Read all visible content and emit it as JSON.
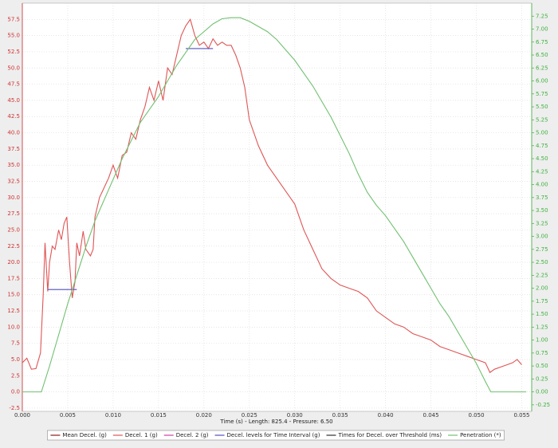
{
  "chart_data": {
    "type": "line",
    "xlabel": "Time (s) - Length: 825.4 - Pressure: 6.50",
    "xlim": [
      0,
      0.0561
    ],
    "ylim": [
      -3,
      60
    ],
    "y2lim": [
      -0.375,
      7.5
    ],
    "grid": true,
    "legend": "bottom",
    "axis_colors": {
      "y": "#d03030",
      "y2": "#40b040"
    },
    "xticks": [
      {
        "value": 0,
        "label": "0.000"
      },
      0.005,
      {
        "value": 0.01,
        "label": "0.010"
      },
      0.015,
      {
        "value": 0.02,
        "label": "0.020"
      },
      0.025,
      {
        "value": 0.03,
        "label": "0.030"
      },
      0.035,
      {
        "value": 0.04,
        "label": "0.040"
      },
      0.045,
      {
        "value": 0.05,
        "label": "0.050"
      },
      0.055
    ],
    "yticks": [
      -2.5,
      {
        "value": 0,
        "label": "0.0"
      },
      2.5,
      {
        "value": 5,
        "label": "5.0"
      },
      7.5,
      {
        "value": 10,
        "label": "10.0"
      },
      12.5,
      {
        "value": 15,
        "label": "15.0"
      },
      17.5,
      {
        "value": 20,
        "label": "20.0"
      },
      22.5,
      {
        "value": 25,
        "label": "25.0"
      },
      27.5,
      {
        "value": 30,
        "label": "30.0"
      },
      32.5,
      {
        "value": 35,
        "label": "35.0"
      },
      37.5,
      {
        "value": 40,
        "label": "40.0"
      },
      42.5,
      {
        "value": 45,
        "label": "45.0"
      },
      47.5,
      {
        "value": 50,
        "label": "50.0"
      },
      52.5,
      {
        "value": 55,
        "label": "55.0"
      },
      57.5
    ],
    "y2ticks": [
      -0.25,
      {
        "value": 0,
        "label": "0.00"
      },
      0.25,
      {
        "value": 0.5,
        "label": "0.50"
      },
      0.75,
      {
        "value": 1,
        "label": "1.00"
      },
      1.25,
      {
        "value": 1.5,
        "label": "1.50"
      },
      1.75,
      {
        "value": 2,
        "label": "2.00"
      },
      2.25,
      {
        "value": 2.5,
        "label": "2.50"
      },
      2.75,
      {
        "value": 3,
        "label": "3.00"
      },
      3.25,
      {
        "value": 3.5,
        "label": "3.50"
      },
      3.75,
      {
        "value": 4,
        "label": "4.00"
      },
      4.25,
      {
        "value": 4.5,
        "label": "4.50"
      },
      4.75,
      {
        "value": 5,
        "label": "5.00"
      },
      5.25,
      {
        "value": 5.5,
        "label": "5.50"
      },
      5.75,
      {
        "value": 6,
        "label": "6.00"
      },
      6.25,
      {
        "value": 6.5,
        "label": "6.50"
      },
      6.75,
      {
        "value": 7,
        "label": "7.00"
      },
      7.25
    ],
    "series": [
      {
        "name": "Mean Decel. (g)",
        "color": "#8b1a1a",
        "x": [],
        "values": []
      },
      {
        "name": "Decel. 1 (g)",
        "color": "#e05555",
        "x": [
          0,
          0.0005,
          0.001,
          0.0015,
          0.002,
          0.0023,
          0.0025,
          0.0028,
          0.003,
          0.0033,
          0.0036,
          0.004,
          0.0043,
          0.0046,
          0.0049,
          0.0052,
          0.0055,
          0.0058,
          0.006,
          0.0063,
          0.0067,
          0.007,
          0.0075,
          0.0078,
          0.008,
          0.0085,
          0.009,
          0.0095,
          0.01,
          0.0105,
          0.011,
          0.0115,
          0.012,
          0.0125,
          0.013,
          0.0135,
          0.014,
          0.0145,
          0.015,
          0.0155,
          0.016,
          0.0165,
          0.017,
          0.0175,
          0.018,
          0.0185,
          0.019,
          0.0195,
          0.02,
          0.0205,
          0.021,
          0.0215,
          0.022,
          0.0225,
          0.023,
          0.0235,
          0.024,
          0.0245,
          0.025,
          0.026,
          0.027,
          0.028,
          0.029,
          0.03,
          0.031,
          0.032,
          0.033,
          0.034,
          0.035,
          0.036,
          0.037,
          0.038,
          0.039,
          0.04,
          0.041,
          0.042,
          0.043,
          0.044,
          0.045,
          0.046,
          0.047,
          0.048,
          0.049,
          0.05,
          0.051,
          0.0515,
          0.052,
          0.053,
          0.054,
          0.0545,
          0.055
        ],
        "values": [
          4.5,
          5.2,
          3.5,
          3.6,
          6,
          15,
          23,
          15.5,
          20,
          22.5,
          22,
          25,
          23.5,
          26,
          27,
          20,
          14.5,
          17,
          23,
          21,
          24.8,
          22,
          21,
          22,
          27,
          30,
          31.5,
          33,
          35,
          33,
          36.5,
          37,
          40,
          39,
          42,
          44,
          47,
          45,
          48,
          45,
          50,
          49,
          52,
          55,
          56.5,
          57.5,
          55,
          53.5,
          54,
          53,
          54.5,
          53.5,
          54,
          53.5,
          53.5,
          52,
          50,
          47,
          42,
          38,
          35,
          33,
          31,
          29,
          25,
          22,
          19,
          17.5,
          16.5,
          16,
          15.5,
          14.5,
          12.5,
          11.5,
          10.5,
          10,
          9,
          8.5,
          8,
          7,
          6.5,
          6,
          5.5,
          5,
          4.5,
          3,
          3.5,
          4,
          4.5,
          5,
          4.2
        ]
      },
      {
        "name": "Decel. 2 (g)",
        "color": "#d040a0",
        "x": [],
        "values": []
      },
      {
        "name": "Decel. levels for Time Interval (g)",
        "color": "#5050c0",
        "x": [
          0.0028,
          0.006,
          0.012,
          0.018,
          0.021
        ],
        "values": [
          15.8,
          15.8,
          null,
          53,
          53
        ]
      },
      {
        "name": "Times for Decel. over Threshold (ms)",
        "color": "#303030",
        "x": [],
        "values": []
      },
      {
        "name": "Penetration (*)",
        "color": "#70c070",
        "axis": "y2",
        "x": [
          0,
          0.0021,
          0.003,
          0.004,
          0.005,
          0.006,
          0.007,
          0.008,
          0.009,
          0.01,
          0.011,
          0.012,
          0.013,
          0.014,
          0.015,
          0.016,
          0.017,
          0.018,
          0.019,
          0.02,
          0.021,
          0.022,
          0.023,
          0.024,
          0.025,
          0.026,
          0.027,
          0.028,
          0.029,
          0.03,
          0.031,
          0.032,
          0.033,
          0.034,
          0.035,
          0.036,
          0.037,
          0.038,
          0.039,
          0.04,
          0.041,
          0.042,
          0.043,
          0.044,
          0.045,
          0.046,
          0.047,
          0.048,
          0.049,
          0.05,
          0.051,
          0.0516,
          0.0555
        ],
        "values": [
          0,
          0,
          0.5,
          1.1,
          1.7,
          2.25,
          2.8,
          3.3,
          3.7,
          4.1,
          4.5,
          4.85,
          5.2,
          5.45,
          5.7,
          6,
          6.3,
          6.55,
          6.8,
          6.95,
          7.1,
          7.2,
          7.22,
          7.22,
          7.15,
          7.05,
          6.95,
          6.8,
          6.6,
          6.4,
          6.15,
          5.9,
          5.6,
          5.3,
          4.95,
          4.6,
          4.2,
          3.85,
          3.6,
          3.4,
          3.15,
          2.9,
          2.6,
          2.3,
          2,
          1.7,
          1.45,
          1.15,
          0.85,
          0.55,
          0.2,
          0,
          0
        ]
      }
    ]
  }
}
